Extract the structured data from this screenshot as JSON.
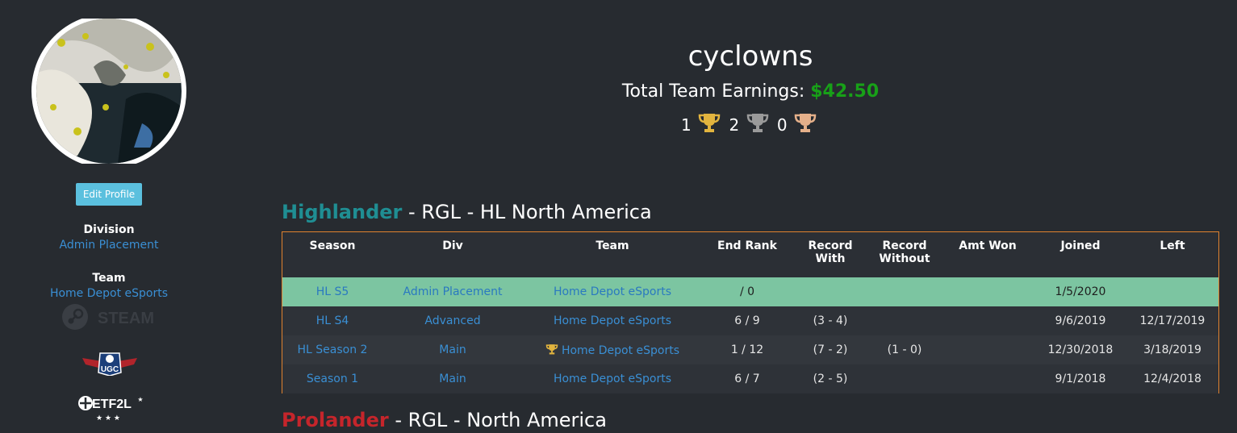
{
  "player": {
    "name": "cyclowns",
    "earnings_label": "Total Team Earnings:",
    "earnings_value": "$42.50",
    "trophies": {
      "gold": "1",
      "silver": "2",
      "bronze": "0"
    }
  },
  "sidebar": {
    "edit_profile_label": "Edit Profile",
    "division_heading": "Division",
    "division_value": "Admin Placement",
    "team_heading": "Team",
    "team_value": "Home Depot eSports",
    "steam_label": "STEAM",
    "ugc_label": "UGC",
    "etf2l_label": "ETF2L"
  },
  "highlander": {
    "format": "Highlander",
    "rest": " - RGL - HL North America",
    "columns": [
      "Season",
      "Div",
      "Team",
      "End Rank",
      "Record With",
      "Record Without",
      "Amt Won",
      "Joined",
      "Left"
    ],
    "rows": [
      {
        "season": "HL S5",
        "div": "Admin Placement",
        "team": "Home Depot eSports",
        "trophy": false,
        "rank": "/ 0",
        "with": "",
        "without": "",
        "amt": "",
        "joined": "1/5/2020",
        "left": ""
      },
      {
        "season": "HL S4",
        "div": "Advanced",
        "team": "Home Depot eSports",
        "trophy": false,
        "rank": "6 / 9",
        "with": "(3 - 4)",
        "without": "",
        "amt": "",
        "joined": "9/6/2019",
        "left": "12/17/2019"
      },
      {
        "season": "HL Season 2",
        "div": "Main",
        "team": "Home Depot eSports",
        "trophy": true,
        "rank": "1 / 12",
        "with": "(7 - 2)",
        "without": "(1 - 0)",
        "amt": "",
        "joined": "12/30/2018",
        "left": "3/18/2019"
      },
      {
        "season": "Season 1",
        "div": "Main",
        "team": "Home Depot eSports",
        "trophy": false,
        "rank": "6 / 7",
        "with": "(2 - 5)",
        "without": "",
        "amt": "",
        "joined": "9/1/2018",
        "left": "12/4/2018"
      }
    ]
  },
  "prolander": {
    "format": "Prolander",
    "rest": " - RGL - North America"
  },
  "colors": {
    "background": "#272b30",
    "highlander": "#1f8e93",
    "prolander": "#c5252b",
    "earnings": "#18a018",
    "current_row": "#7cc5a1",
    "table_border": "#e0822f",
    "link": "#3a8fd4"
  },
  "icons": [
    "gold-trophy-icon",
    "silver-trophy-icon",
    "bronze-trophy-icon",
    "steam-icon",
    "ugc-logo",
    "etf2l-logo"
  ]
}
